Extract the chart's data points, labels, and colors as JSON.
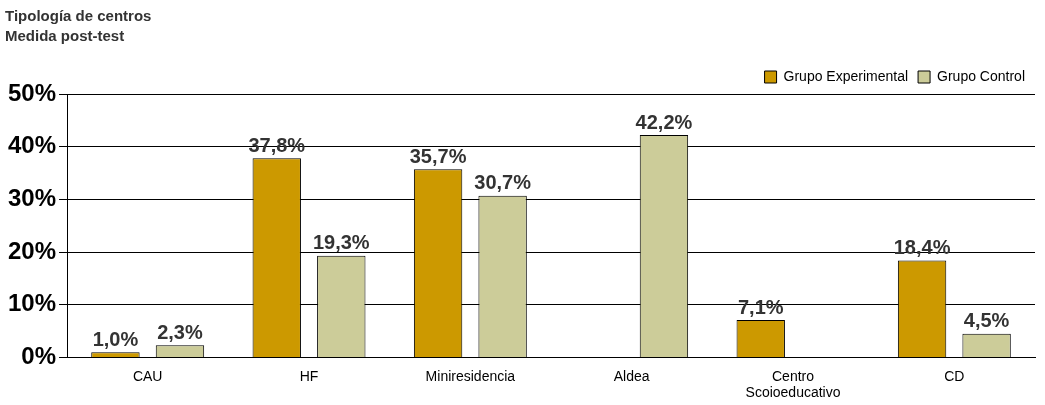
{
  "chart_data": {
    "type": "bar",
    "title": "Tipología de centros",
    "subtitle": "Medida post-test",
    "categories": [
      "CAU",
      "HF",
      "Miniresidencia",
      "Aldea",
      "Centro Scoioeducativo",
      "CD"
    ],
    "series": [
      {
        "name": "Grupo Experimental",
        "color": "#cc9900",
        "values": [
          1.0,
          37.8,
          35.7,
          null,
          7.1,
          18.4
        ],
        "value_labels": [
          "1,0%",
          "37,8%",
          "35,7%",
          null,
          "7,1%",
          "18,4%"
        ]
      },
      {
        "name": "Grupo Control",
        "color": "#cccc99",
        "values": [
          2.3,
          19.3,
          30.7,
          42.2,
          null,
          4.5
        ],
        "value_labels": [
          "2,3%",
          "19,3%",
          "30,7%",
          "42,2%",
          null,
          "4,5%"
        ]
      }
    ],
    "ylim": [
      0,
      50
    ],
    "yticks": [
      {
        "value": 0,
        "label": "0%"
      },
      {
        "value": 10,
        "label": "10%"
      },
      {
        "value": 20,
        "label": "20%"
      },
      {
        "value": 30,
        "label": "30%"
      },
      {
        "value": 40,
        "label": "40%"
      },
      {
        "value": 50,
        "label": "50%"
      }
    ],
    "grid": "y",
    "legend": "top right"
  }
}
